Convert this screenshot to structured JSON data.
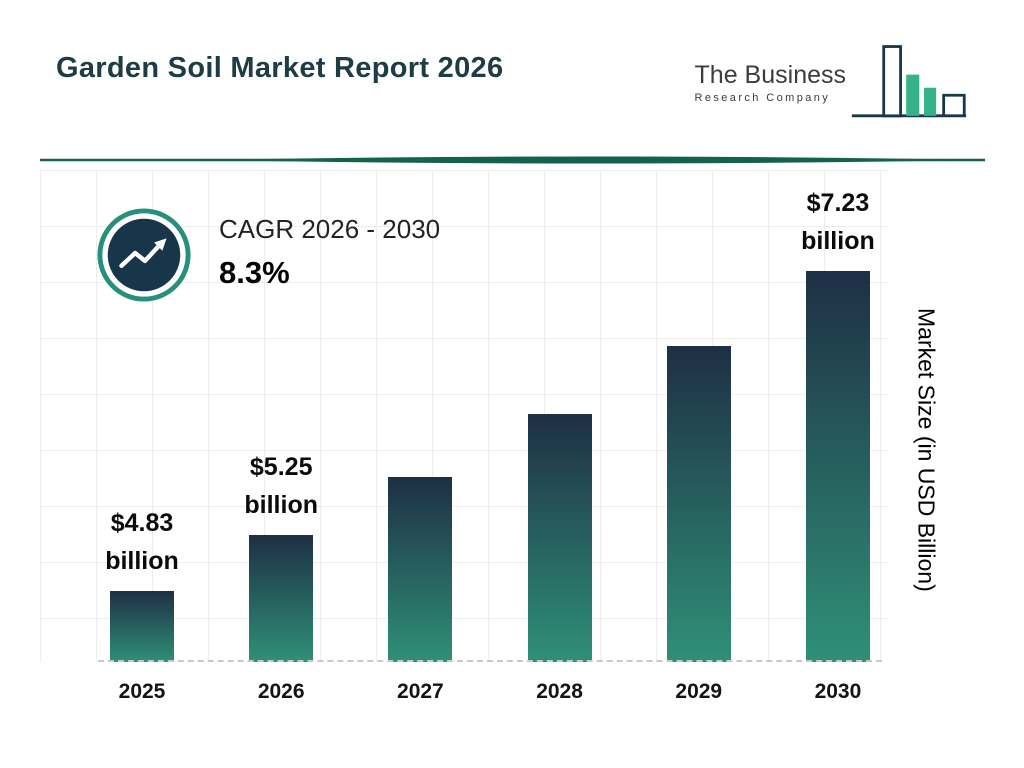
{
  "header": {
    "title": "Garden Soil Market Report 2026",
    "logo": {
      "line1": "The Business",
      "line2": "Research Company"
    }
  },
  "cagr": {
    "label": "CAGR 2026 - 2030",
    "value": "8.3%"
  },
  "chart_data": {
    "type": "bar",
    "title": "Garden Soil Market Report 2026",
    "categories": [
      "2025",
      "2026",
      "2027",
      "2028",
      "2029",
      "2030"
    ],
    "values": [
      4.83,
      5.25,
      5.69,
      6.16,
      6.67,
      7.23
    ],
    "data_labels": [
      {
        "amount": "$4.83",
        "unit": "billion"
      },
      {
        "amount": "$5.25",
        "unit": "billion"
      },
      null,
      null,
      null,
      {
        "amount": "$7.23",
        "unit": "billion"
      }
    ],
    "xlabel": "",
    "ylabel": "Market Size (in USD Billion)",
    "ylim": [
      4.3,
      7.45
    ],
    "grid": true,
    "legend": "none",
    "colors": {
      "bar_top": "#1e2f45",
      "bar_bottom": "#2f9077",
      "accent_teal": "#28907a",
      "badge_navy": "#17364a",
      "divider": "#15604f",
      "logo_green": "#35b287",
      "logo_navy": "#16384a"
    }
  }
}
